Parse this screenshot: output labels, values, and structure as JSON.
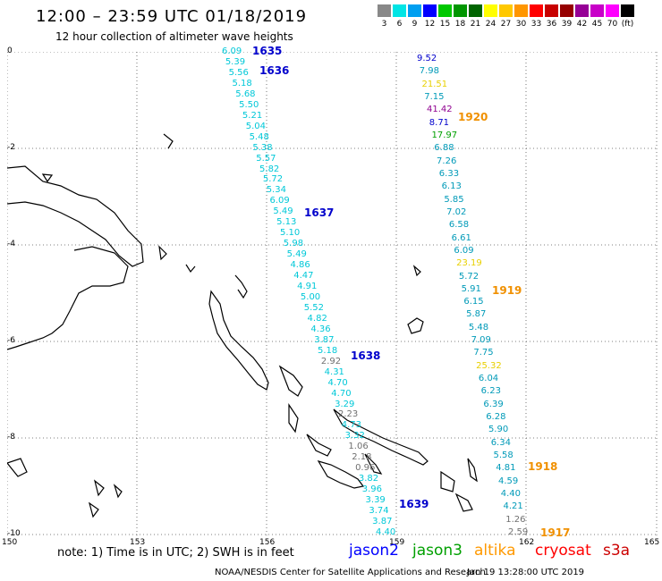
{
  "header": {
    "title": "12:00 – 23:59 UTC 01/18/2019",
    "subtitle": "12 hour collection of altimeter wave heights"
  },
  "legend": {
    "swatches": [
      {
        "color": "#888888",
        "label": "3"
      },
      {
        "color": "#00e5e5",
        "label": "6"
      },
      {
        "color": "#009ff0",
        "label": "9"
      },
      {
        "color": "#0000ff",
        "label": "12"
      },
      {
        "color": "#00c800",
        "label": "15"
      },
      {
        "color": "#009600",
        "label": "18"
      },
      {
        "color": "#006400",
        "label": "21"
      },
      {
        "color": "#ffff00",
        "label": "24"
      },
      {
        "color": "#ffc800",
        "label": "27"
      },
      {
        "color": "#ff9600",
        "label": "30"
      },
      {
        "color": "#ff0000",
        "label": "33"
      },
      {
        "color": "#c80000",
        "label": "36"
      },
      {
        "color": "#960000",
        "label": "39"
      },
      {
        "color": "#960096",
        "label": "42"
      },
      {
        "color": "#c800c8",
        "label": "45"
      },
      {
        "color": "#ff00ff",
        "label": "70"
      },
      {
        "color": "#000000",
        "label": "(ft)"
      }
    ]
  },
  "axes": {
    "y_ticks": [
      "0",
      "-2",
      "-4",
      "-6",
      "-8",
      "-10"
    ],
    "x_ticks": [
      "150",
      "153",
      "156",
      "159",
      "162",
      "165"
    ]
  },
  "colors": {
    "cyan": "#00c8d8",
    "teal": "#009ab8",
    "gray": "#707070",
    "yellow": "#e8d000",
    "orange": "#f09000",
    "purple": "#900090",
    "green": "#00a000",
    "blue": "#0000cc"
  },
  "tracks": [
    {
      "id": "A",
      "times": [
        "1635",
        "1636",
        "1637",
        "1638",
        "1639"
      ],
      "values": [
        "6.09",
        "5.39",
        "5.56",
        "5.18",
        "5.68",
        "5.50",
        "5.21",
        "5.04",
        "5.48",
        "5.38",
        "5.57",
        "5.82",
        "5.72",
        "5.34",
        "6.09",
        "5.49",
        "5.13",
        "5.10",
        "5.98",
        "5.49",
        "4.86",
        "4.47",
        "4.91",
        "5.00",
        "5.52",
        "4.82",
        "4.36",
        "3.87",
        "5.18",
        "2.92",
        "4.31",
        "4.70",
        "4.70",
        "3.29",
        "2.23",
        "4.73",
        "3.32",
        "1.06",
        "2.18",
        "0.96",
        "3.82",
        "3.96",
        "3.39",
        "3.74",
        "3.87",
        "4.40"
      ]
    },
    {
      "id": "B",
      "times": [
        "1920",
        "1919",
        "1918",
        "1917"
      ],
      "values": [
        "9.52",
        "7.98",
        "21.51",
        "7.15",
        "41.42",
        "8.71",
        "17.97",
        "6.88",
        "7.26",
        "6.33",
        "6.13",
        "5.85",
        "7.02",
        "6.58",
        "6.61",
        "6.09",
        "23.19",
        "5.72",
        "5.91",
        "6.15",
        "5.87",
        "5.48",
        "7.09",
        "7.75",
        "25.32",
        "6.04",
        "6.23",
        "6.39",
        "6.28",
        "5.90",
        "6.34",
        "5.58",
        "4.81",
        "4.59",
        "4.40",
        "4.21",
        "1.26",
        "2.59"
      ]
    }
  ],
  "note": "note: 1) Time is in UTC; 2) SWH is in feet",
  "satellites": [
    {
      "name": "jason2",
      "color": "#0000ff"
    },
    {
      "name": "jason3",
      "color": "#00a000"
    },
    {
      "name": "altika",
      "color": "#ff9900"
    },
    {
      "name": "cryosat",
      "color": "#ff0000"
    },
    {
      "name": "s3a",
      "color": "#cc0000"
    }
  ],
  "footer": {
    "left": "NOAA/NESDIS Center for Satellite Applications and Research",
    "right": "Jan 19 13:28:00 UTC 2019"
  }
}
